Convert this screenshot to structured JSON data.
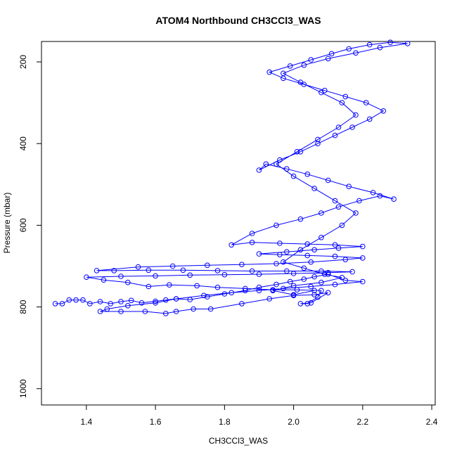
{
  "chart_data": {
    "type": "scatter",
    "title": "ATOM4 Northbound CH3CCl3_WAS",
    "xlabel": "CH3CCl3_WAS",
    "ylabel": "Pressure (mbar)",
    "xlim": [
      1.27,
      2.41
    ],
    "ylim": [
      1040,
      150
    ],
    "y_reversed": true,
    "x_ticks": [
      1.4,
      1.6,
      1.8,
      2.0,
      2.2,
      2.4
    ],
    "x_tick_labels": [
      "1.4",
      "1.6",
      "1.8",
      "2.0",
      "2.2",
      "2.4"
    ],
    "y_ticks": [
      200,
      400,
      600,
      800,
      1000
    ],
    "y_tick_labels": [
      "200",
      "400",
      "600",
      "800",
      "1000"
    ],
    "grid": false,
    "legend": "none",
    "series": [
      {
        "color": "#0000ff",
        "marker": "open-circle",
        "line": true,
        "points": [
          {
            "x": 1.31,
            "y": 792
          },
          {
            "x": 1.33,
            "y": 792
          },
          {
            "x": 1.35,
            "y": 783
          },
          {
            "x": 1.37,
            "y": 783
          },
          {
            "x": 1.39,
            "y": 783
          },
          {
            "x": 1.41,
            "y": 792
          },
          {
            "x": 1.44,
            "y": 787
          },
          {
            "x": 1.47,
            "y": 792
          },
          {
            "x": 1.5,
            "y": 787
          },
          {
            "x": 1.53,
            "y": 784
          },
          {
            "x": 1.56,
            "y": 790
          },
          {
            "x": 1.6,
            "y": 786
          },
          {
            "x": 1.63,
            "y": 783
          },
          {
            "x": 1.66,
            "y": 780
          },
          {
            "x": 1.7,
            "y": 782
          },
          {
            "x": 1.75,
            "y": 775
          },
          {
            "x": 1.8,
            "y": 768
          },
          {
            "x": 1.86,
            "y": 760
          },
          {
            "x": 1.9,
            "y": 752
          },
          {
            "x": 1.95,
            "y": 745
          },
          {
            "x": 1.99,
            "y": 738
          },
          {
            "x": 2.03,
            "y": 732
          },
          {
            "x": 2.06,
            "y": 726
          },
          {
            "x": 2.1,
            "y": 720
          },
          {
            "x": 2.15,
            "y": 735
          },
          {
            "x": 2.2,
            "y": 738
          },
          {
            "x": 2.12,
            "y": 745
          },
          {
            "x": 2.05,
            "y": 750
          },
          {
            "x": 1.97,
            "y": 755
          },
          {
            "x": 1.9,
            "y": 760
          },
          {
            "x": 1.82,
            "y": 765
          },
          {
            "x": 1.74,
            "y": 772
          },
          {
            "x": 1.66,
            "y": 780
          },
          {
            "x": 1.6,
            "y": 790
          },
          {
            "x": 1.52,
            "y": 797
          },
          {
            "x": 1.46,
            "y": 805
          },
          {
            "x": 1.44,
            "y": 811
          },
          {
            "x": 1.5,
            "y": 811
          },
          {
            "x": 1.57,
            "y": 811
          },
          {
            "x": 1.63,
            "y": 816
          },
          {
            "x": 1.66,
            "y": 811
          },
          {
            "x": 1.71,
            "y": 805
          },
          {
            "x": 1.76,
            "y": 805
          },
          {
            "x": 1.85,
            "y": 792
          },
          {
            "x": 1.93,
            "y": 780
          },
          {
            "x": 2.0,
            "y": 772
          },
          {
            "x": 2.06,
            "y": 770
          },
          {
            "x": 2.1,
            "y": 765
          },
          {
            "x": 2.05,
            "y": 790
          },
          {
            "x": 2.02,
            "y": 792
          },
          {
            "x": 2.04,
            "y": 792
          },
          {
            "x": 2.07,
            "y": 776
          },
          {
            "x": 2.08,
            "y": 760
          },
          {
            "x": 2.01,
            "y": 758
          },
          {
            "x": 1.94,
            "y": 758
          },
          {
            "x": 1.86,
            "y": 755
          },
          {
            "x": 1.78,
            "y": 752
          },
          {
            "x": 1.72,
            "y": 748
          },
          {
            "x": 1.64,
            "y": 746
          },
          {
            "x": 1.58,
            "y": 750
          },
          {
            "x": 1.52,
            "y": 740
          },
          {
            "x": 1.45,
            "y": 734
          },
          {
            "x": 1.4,
            "y": 727
          },
          {
            "x": 1.5,
            "y": 725
          },
          {
            "x": 1.6,
            "y": 724
          },
          {
            "x": 1.7,
            "y": 722
          },
          {
            "x": 1.8,
            "y": 721
          },
          {
            "x": 1.9,
            "y": 720
          },
          {
            "x": 2.0,
            "y": 718
          },
          {
            "x": 2.1,
            "y": 716
          },
          {
            "x": 2.17,
            "y": 714
          },
          {
            "x": 2.08,
            "y": 712
          },
          {
            "x": 1.98,
            "y": 712
          },
          {
            "x": 1.88,
            "y": 712
          },
          {
            "x": 1.78,
            "y": 711
          },
          {
            "x": 1.68,
            "y": 710
          },
          {
            "x": 1.58,
            "y": 710
          },
          {
            "x": 1.48,
            "y": 711
          },
          {
            "x": 1.43,
            "y": 711
          },
          {
            "x": 1.55,
            "y": 702
          },
          {
            "x": 1.65,
            "y": 700
          },
          {
            "x": 1.75,
            "y": 698
          },
          {
            "x": 1.85,
            "y": 696
          },
          {
            "x": 1.95,
            "y": 694
          },
          {
            "x": 2.05,
            "y": 690
          },
          {
            "x": 2.15,
            "y": 684
          },
          {
            "x": 2.2,
            "y": 680
          },
          {
            "x": 2.12,
            "y": 676
          },
          {
            "x": 2.04,
            "y": 674
          },
          {
            "x": 1.96,
            "y": 672
          },
          {
            "x": 1.9,
            "y": 670
          },
          {
            "x": 1.98,
            "y": 665
          },
          {
            "x": 2.06,
            "y": 660
          },
          {
            "x": 2.13,
            "y": 656
          },
          {
            "x": 2.2,
            "y": 652
          },
          {
            "x": 2.12,
            "y": 648
          },
          {
            "x": 2.04,
            "y": 646
          },
          {
            "x": 1.96,
            "y": 644
          },
          {
            "x": 1.88,
            "y": 642
          },
          {
            "x": 1.82,
            "y": 648
          },
          {
            "x": 1.88,
            "y": 620
          },
          {
            "x": 1.95,
            "y": 600
          },
          {
            "x": 2.02,
            "y": 585
          },
          {
            "x": 2.08,
            "y": 570
          },
          {
            "x": 2.13,
            "y": 555
          },
          {
            "x": 2.19,
            "y": 540
          },
          {
            "x": 2.25,
            "y": 528
          },
          {
            "x": 2.29,
            "y": 536
          },
          {
            "x": 2.23,
            "y": 520
          },
          {
            "x": 2.16,
            "y": 505
          },
          {
            "x": 2.1,
            "y": 490
          },
          {
            "x": 2.04,
            "y": 475
          },
          {
            "x": 1.98,
            "y": 462
          },
          {
            "x": 1.92,
            "y": 450
          },
          {
            "x": 1.9,
            "y": 465
          },
          {
            "x": 1.96,
            "y": 440
          },
          {
            "x": 2.02,
            "y": 420
          },
          {
            "x": 2.07,
            "y": 400
          },
          {
            "x": 2.12,
            "y": 380
          },
          {
            "x": 2.17,
            "y": 360
          },
          {
            "x": 2.22,
            "y": 340
          },
          {
            "x": 2.26,
            "y": 320
          },
          {
            "x": 2.21,
            "y": 300
          },
          {
            "x": 2.15,
            "y": 285
          },
          {
            "x": 2.09,
            "y": 270
          },
          {
            "x": 2.03,
            "y": 255
          },
          {
            "x": 1.97,
            "y": 240
          },
          {
            "x": 1.93,
            "y": 225
          },
          {
            "x": 1.99,
            "y": 210
          },
          {
            "x": 2.05,
            "y": 195
          },
          {
            "x": 2.11,
            "y": 180
          },
          {
            "x": 2.16,
            "y": 168
          },
          {
            "x": 2.22,
            "y": 158
          },
          {
            "x": 2.28,
            "y": 152
          },
          {
            "x": 2.33,
            "y": 155
          },
          {
            "x": 2.25,
            "y": 165
          },
          {
            "x": 2.18,
            "y": 178
          },
          {
            "x": 2.1,
            "y": 192
          },
          {
            "x": 2.03,
            "y": 208
          },
          {
            "x": 1.97,
            "y": 228
          },
          {
            "x": 2.02,
            "y": 250
          },
          {
            "x": 2.08,
            "y": 275
          },
          {
            "x": 2.14,
            "y": 300
          },
          {
            "x": 2.18,
            "y": 330
          },
          {
            "x": 2.13,
            "y": 360
          },
          {
            "x": 2.07,
            "y": 390
          },
          {
            "x": 2.01,
            "y": 420
          },
          {
            "x": 1.95,
            "y": 450
          },
          {
            "x": 2.0,
            "y": 480
          },
          {
            "x": 2.06,
            "y": 510
          },
          {
            "x": 2.12,
            "y": 540
          },
          {
            "x": 2.18,
            "y": 570
          },
          {
            "x": 2.14,
            "y": 600
          },
          {
            "x": 2.08,
            "y": 630
          },
          {
            "x": 2.02,
            "y": 660
          },
          {
            "x": 1.97,
            "y": 690
          },
          {
            "x": 2.03,
            "y": 705
          },
          {
            "x": 2.09,
            "y": 720
          },
          {
            "x": 2.14,
            "y": 728
          },
          {
            "x": 2.08,
            "y": 740
          },
          {
            "x": 2.0,
            "y": 748
          },
          {
            "x": 1.94,
            "y": 760
          },
          {
            "x": 2.0,
            "y": 770
          },
          {
            "x": 2.06,
            "y": 760
          }
        ]
      }
    ]
  }
}
